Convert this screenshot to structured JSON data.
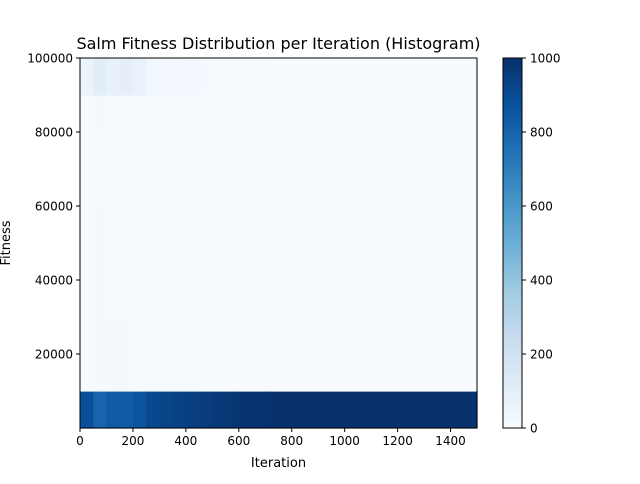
{
  "chart_data": {
    "type": "heatmap",
    "title": "Salm Fitness Distribution per Iteration (Histogram)",
    "xlabel": "Iteration",
    "ylabel": "Fitness",
    "xlim": [
      0,
      1500
    ],
    "ylim": [
      0,
      100000
    ],
    "x_ticks": [
      0,
      200,
      400,
      600,
      800,
      1000,
      1200,
      1400
    ],
    "y_ticks": [
      20000,
      40000,
      60000,
      80000,
      100000
    ],
    "bin_edges": [
      0,
      10000,
      20000,
      30000,
      40000,
      50000,
      60000,
      70000,
      80000,
      90000,
      100000
    ],
    "colormap": "Blues",
    "colorbar": {
      "range": [
        0,
        1000
      ],
      "ticks": [
        0,
        200,
        400,
        600,
        800,
        1000
      ]
    },
    "grid": false,
    "series": [
      {
        "x_range": [
          0,
          50
        ],
        "counts": [
          880,
          10,
          10,
          8,
          8,
          8,
          6,
          6,
          8,
          55
        ]
      },
      {
        "x_range": [
          50,
          100
        ],
        "counts": [
          800,
          14,
          14,
          12,
          12,
          12,
          10,
          10,
          12,
          110
        ]
      },
      {
        "x_range": [
          100,
          150
        ],
        "counts": [
          840,
          12,
          12,
          10,
          10,
          10,
          8,
          8,
          10,
          75
        ]
      },
      {
        "x_range": [
          150,
          200
        ],
        "counts": [
          830,
          12,
          12,
          10,
          10,
          10,
          8,
          8,
          10,
          90
        ]
      },
      {
        "x_range": [
          200,
          250
        ],
        "counts": [
          860,
          10,
          10,
          8,
          8,
          8,
          6,
          6,
          8,
          70
        ]
      },
      {
        "x_range": [
          250,
          300
        ],
        "counts": [
          910,
          8,
          8,
          6,
          6,
          6,
          5,
          5,
          6,
          35
        ]
      },
      {
        "x_range": [
          300,
          350
        ],
        "counts": [
          925,
          6,
          6,
          5,
          5,
          5,
          4,
          4,
          5,
          30
        ]
      },
      {
        "x_range": [
          350,
          400
        ],
        "counts": [
          935,
          5,
          5,
          4,
          4,
          4,
          3,
          3,
          4,
          25
        ]
      },
      {
        "x_range": [
          400,
          450
        ],
        "counts": [
          945,
          4,
          4,
          3,
          3,
          3,
          2,
          2,
          3,
          20
        ]
      },
      {
        "x_range": [
          450,
          500
        ],
        "counts": [
          955,
          3,
          3,
          2,
          2,
          2,
          2,
          2,
          3,
          18
        ]
      },
      {
        "x_range": [
          500,
          550
        ],
        "counts": [
          965,
          2,
          2,
          2,
          2,
          2,
          1,
          1,
          2,
          10
        ]
      },
      {
        "x_range": [
          550,
          600
        ],
        "counts": [
          975,
          2,
          2,
          1,
          1,
          1,
          1,
          1,
          2,
          8
        ]
      },
      {
        "x_range": [
          600,
          700
        ],
        "counts": [
          985,
          1,
          1,
          1,
          1,
          1,
          1,
          1,
          1,
          5
        ]
      },
      {
        "x_range": [
          700,
          1500
        ],
        "counts": [
          995,
          0,
          0,
          0,
          0,
          0,
          0,
          0,
          0,
          3
        ]
      }
    ]
  }
}
